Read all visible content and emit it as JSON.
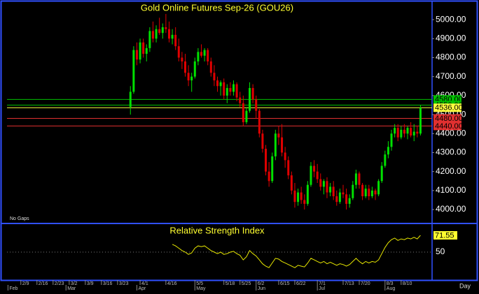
{
  "chart_data": [
    {
      "type": "candlestick",
      "title": "Gold Online Futures Sep-26 (GOU26)",
      "note": "No Gaps",
      "up_color": "#00e000",
      "down_color": "#e00000",
      "xlim": [
        -4.3,
        127.6
      ],
      "ylim": [
        3934,
        5085
      ],
      "yticks": [
        {
          "value": 4000,
          "label": "4000.00"
        },
        {
          "value": 4100,
          "label": "4100.00"
        },
        {
          "value": 4200,
          "label": "4200.00"
        },
        {
          "value": 4300,
          "label": "4300.00"
        },
        {
          "value": 4400,
          "label": "4400.00"
        },
        {
          "value": 4500,
          "label": "4500.00"
        },
        {
          "value": 4600,
          "label": "4600.00"
        },
        {
          "value": 4700,
          "label": "4700.00"
        },
        {
          "value": 4800,
          "label": "4800.00"
        },
        {
          "value": 4900,
          "label": "4900.00"
        },
        {
          "value": 5000,
          "label": "5000.00"
        }
      ],
      "levels": [
        {
          "value": 4580,
          "label": "4580.00",
          "color": "#00c000"
        },
        {
          "value": 4550,
          "label": "4550.00",
          "color": "#00c000"
        },
        {
          "value": 4536,
          "label": "4536.00",
          "color": "#ffff40"
        },
        {
          "value": 4480,
          "label": "4480.00",
          "color": "#e03030"
        },
        {
          "value": 4440,
          "label": "4440.00",
          "color": "#e03030"
        }
      ],
      "x": [
        34,
        35,
        36,
        37,
        38,
        39,
        40,
        41,
        42,
        43,
        44,
        45,
        46,
        47,
        48,
        49,
        50,
        51,
        52,
        53,
        54,
        55,
        56,
        57,
        58,
        59,
        60,
        61,
        62,
        63,
        64,
        65,
        66,
        67,
        68,
        69,
        70,
        71,
        72,
        73,
        74,
        75,
        76,
        77,
        78,
        79,
        80,
        81,
        82,
        83,
        84,
        85,
        86,
        87,
        88,
        89,
        90,
        91,
        92,
        93,
        94,
        95,
        96,
        97,
        98,
        99,
        100,
        101,
        102,
        103,
        104,
        105,
        106,
        107,
        108,
        109,
        110,
        111,
        112,
        113,
        114,
        115,
        116,
        117,
        118,
        119,
        120,
        121,
        122,
        123,
        124
      ],
      "ohlc": [
        [
          4540,
          4650,
          4500,
          4620
        ],
        [
          4620,
          4860,
          4610,
          4840
        ],
        [
          4840,
          4880,
          4760,
          4790
        ],
        [
          4790,
          4900,
          4770,
          4880
        ],
        [
          4880,
          4900,
          4800,
          4820
        ],
        [
          4820,
          4870,
          4780,
          4850
        ],
        [
          4850,
          4960,
          4830,
          4940
        ],
        [
          4940,
          4990,
          4880,
          4900
        ],
        [
          4900,
          4970,
          4880,
          4950
        ],
        [
          4950,
          5010,
          4920,
          4930
        ],
        [
          4930,
          4980,
          4900,
          4960
        ],
        [
          4960,
          5030,
          4930,
          4950
        ],
        [
          4950,
          4990,
          4880,
          4900
        ],
        [
          4900,
          4950,
          4870,
          4920
        ],
        [
          4920,
          4960,
          4840,
          4860
        ],
        [
          4860,
          4900,
          4780,
          4800
        ],
        [
          4800,
          4830,
          4740,
          4780
        ],
        [
          4780,
          4820,
          4700,
          4720
        ],
        [
          4720,
          4760,
          4650,
          4680
        ],
        [
          4680,
          4720,
          4620,
          4700
        ],
        [
          4700,
          4800,
          4690,
          4780
        ],
        [
          4780,
          4850,
          4760,
          4830
        ],
        [
          4830,
          4870,
          4800,
          4810
        ],
        [
          4810,
          4850,
          4780,
          4840
        ],
        [
          4840,
          4850,
          4760,
          4780
        ],
        [
          4780,
          4800,
          4700,
          4720
        ],
        [
          4720,
          4760,
          4650,
          4680
        ],
        [
          4680,
          4700,
          4620,
          4650
        ],
        [
          4650,
          4680,
          4600,
          4670
        ],
        [
          4670,
          4690,
          4580,
          4600
        ],
        [
          4600,
          4660,
          4560,
          4640
        ],
        [
          4640,
          4670,
          4600,
          4620
        ],
        [
          4620,
          4680,
          4600,
          4660
        ],
        [
          4660,
          4670,
          4570,
          4590
        ],
        [
          4590,
          4620,
          4540,
          4560
        ],
        [
          4560,
          4600,
          4440,
          4460
        ],
        [
          4460,
          4540,
          4450,
          4520
        ],
        [
          4520,
          4670,
          4510,
          4640
        ],
        [
          4640,
          4660,
          4560,
          4580
        ],
        [
          4580,
          4600,
          4480,
          4520
        ],
        [
          4520,
          4530,
          4380,
          4400
        ],
        [
          4400,
          4420,
          4300,
          4320
        ],
        [
          4320,
          4340,
          4180,
          4200
        ],
        [
          4200,
          4250,
          4120,
          4150
        ],
        [
          4150,
          4300,
          4140,
          4280
        ],
        [
          4280,
          4420,
          4260,
          4400
        ],
        [
          4400,
          4440,
          4340,
          4380
        ],
        [
          4380,
          4450,
          4280,
          4300
        ],
        [
          4300,
          4330,
          4220,
          4260
        ],
        [
          4260,
          4280,
          4160,
          4180
        ],
        [
          4180,
          4200,
          4080,
          4100
        ],
        [
          4100,
          4140,
          4010,
          4040
        ],
        [
          4040,
          4110,
          4020,
          4090
        ],
        [
          4090,
          4120,
          4030,
          4050
        ],
        [
          4050,
          4080,
          4000,
          4030
        ],
        [
          4030,
          4150,
          4020,
          4130
        ],
        [
          4130,
          4250,
          4120,
          4230
        ],
        [
          4230,
          4260,
          4170,
          4200
        ],
        [
          4200,
          4240,
          4140,
          4160
        ],
        [
          4160,
          4190,
          4100,
          4120
        ],
        [
          4120,
          4160,
          4080,
          4150
        ],
        [
          4150,
          4170,
          4060,
          4090
        ],
        [
          4090,
          4140,
          4070,
          4120
        ],
        [
          4120,
          4150,
          4050,
          4070
        ],
        [
          4070,
          4100,
          4020,
          4040
        ],
        [
          4040,
          4110,
          4030,
          4090
        ],
        [
          4090,
          4130,
          4060,
          4080
        ],
        [
          4080,
          4110,
          4000,
          4030
        ],
        [
          4030,
          4080,
          4010,
          4060
        ],
        [
          4060,
          4150,
          4050,
          4130
        ],
        [
          4130,
          4210,
          4110,
          4190
        ],
        [
          4190,
          4200,
          4110,
          4130
        ],
        [
          4130,
          4140,
          4050,
          4070
        ],
        [
          4070,
          4130,
          4060,
          4110
        ],
        [
          4110,
          4130,
          4050,
          4070
        ],
        [
          4070,
          4120,
          4060,
          4100
        ],
        [
          4100,
          4110,
          4050,
          4080
        ],
        [
          4080,
          4160,
          4070,
          4150
        ],
        [
          4150,
          4250,
          4140,
          4230
        ],
        [
          4230,
          4310,
          4220,
          4290
        ],
        [
          4290,
          4360,
          4270,
          4330
        ],
        [
          4330,
          4420,
          4310,
          4400
        ],
        [
          4400,
          4450,
          4380,
          4430
        ],
        [
          4430,
          4450,
          4360,
          4380
        ],
        [
          4380,
          4440,
          4370,
          4420
        ],
        [
          4420,
          4450,
          4380,
          4400
        ],
        [
          4400,
          4440,
          4370,
          4430
        ],
        [
          4430,
          4460,
          4380,
          4390
        ],
        [
          4390,
          4450,
          4360,
          4410
        ],
        [
          4410,
          4440,
          4380,
          4400
        ],
        [
          4400,
          4550,
          4390,
          4536
        ]
      ]
    },
    {
      "type": "line",
      "title": "Relative Strength Index",
      "color": "#e8e800",
      "grid": true,
      "xlim": [
        -4.3,
        127.6
      ],
      "ylim": [
        15,
        85
      ],
      "yticks": [
        50
      ],
      "x": [
        47,
        48,
        49,
        50,
        51,
        52,
        53,
        54,
        55,
        56,
        57,
        58,
        59,
        60,
        61,
        62,
        63,
        64,
        65,
        66,
        67,
        68,
        69,
        70,
        71,
        72,
        73,
        74,
        75,
        76,
        77,
        78,
        79,
        80,
        81,
        82,
        83,
        84,
        85,
        86,
        87,
        88,
        89,
        90,
        91,
        92,
        93,
        94,
        95,
        96,
        97,
        98,
        99,
        100,
        101,
        102,
        103,
        104,
        105,
        106,
        107,
        108,
        109,
        110,
        111,
        112,
        113,
        114,
        115,
        116,
        117,
        118,
        119,
        120,
        121,
        122,
        123,
        124
      ],
      "values": [
        60,
        58,
        55,
        52,
        50,
        47,
        49,
        55,
        58,
        57,
        58,
        55,
        52,
        50,
        48,
        50,
        47,
        48,
        50,
        51,
        48,
        46,
        40,
        44,
        52,
        48,
        45,
        40,
        35,
        32,
        30,
        36,
        42,
        41,
        38,
        36,
        34,
        32,
        30,
        33,
        32,
        31,
        36,
        42,
        40,
        38,
        36,
        38,
        35,
        37,
        35,
        33,
        35,
        34,
        32,
        34,
        38,
        42,
        38,
        35,
        38,
        36,
        38,
        37,
        40,
        48,
        56,
        62,
        66,
        68,
        65,
        67,
        66,
        68,
        67,
        69,
        67,
        71.55
      ],
      "xticks": [
        {
          "value": 0,
          "label": "2/9"
        },
        {
          "value": 5,
          "label": "2/16"
        },
        {
          "value": 10,
          "label": "2/23"
        },
        {
          "value": 15,
          "label": "3/2"
        },
        {
          "value": 20,
          "label": "3/9"
        },
        {
          "value": 25,
          "label": "3/16"
        },
        {
          "value": 30,
          "label": "3/23"
        },
        {
          "value": 37,
          "label": "4/1"
        },
        {
          "value": 45,
          "label": "4/16"
        },
        {
          "value": 54,
          "label": "5/5"
        },
        {
          "value": 63,
          "label": "5/18"
        },
        {
          "value": 68,
          "label": "5/25"
        },
        {
          "value": 73,
          "label": "6/2"
        },
        {
          "value": 80,
          "label": "6/15"
        },
        {
          "value": 85,
          "label": "6/22"
        },
        {
          "value": 92,
          "label": "7/1"
        },
        {
          "value": 100,
          "label": "7/13"
        },
        {
          "value": 105,
          "label": "7/20"
        },
        {
          "value": 113,
          "label": "8/3"
        },
        {
          "value": 118,
          "label": "8/10"
        }
      ],
      "months": [
        {
          "value": -4,
          "label": "Feb"
        },
        {
          "value": 14,
          "label": "Mar"
        },
        {
          "value": 36,
          "label": "Apr"
        },
        {
          "value": 54,
          "label": "May"
        },
        {
          "value": 73,
          "label": "Jun"
        },
        {
          "value": 92,
          "label": "Jul"
        },
        {
          "value": 113,
          "label": "Aug"
        }
      ],
      "period_label": "Day"
    }
  ]
}
